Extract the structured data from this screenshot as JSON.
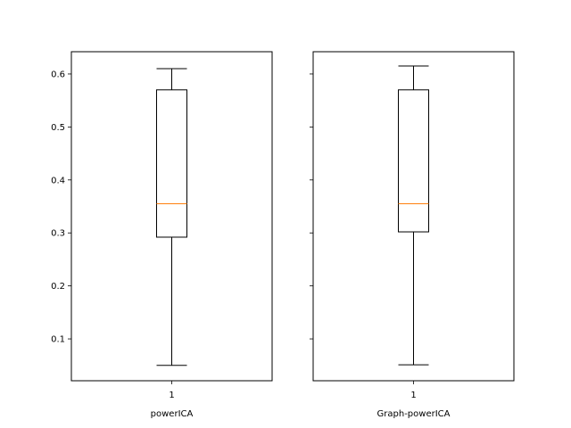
{
  "chart_data": [
    {
      "type": "box",
      "categories": [
        "1"
      ],
      "xlabel": "powerICA",
      "ylabel": "",
      "ylim": [
        0.021,
        0.642
      ],
      "yticks": [
        "0.1",
        "0.2",
        "0.3",
        "0.4",
        "0.5",
        "0.6"
      ],
      "box": {
        "whisker_low": 0.05,
        "q1": 0.292,
        "median": 0.355,
        "q3": 0.57,
        "whisker_high": 0.61
      }
    },
    {
      "type": "box",
      "categories": [
        "1"
      ],
      "xlabel": "Graph-powerICA",
      "ylabel": "",
      "ylim": [
        0.021,
        0.642
      ],
      "sharey": true,
      "box": {
        "whisker_low": 0.051,
        "q1": 0.302,
        "median": 0.355,
        "q3": 0.57,
        "whisker_high": 0.615
      }
    }
  ],
  "style": {
    "box_color": "#000000",
    "median_color": "#ff7f0e"
  }
}
